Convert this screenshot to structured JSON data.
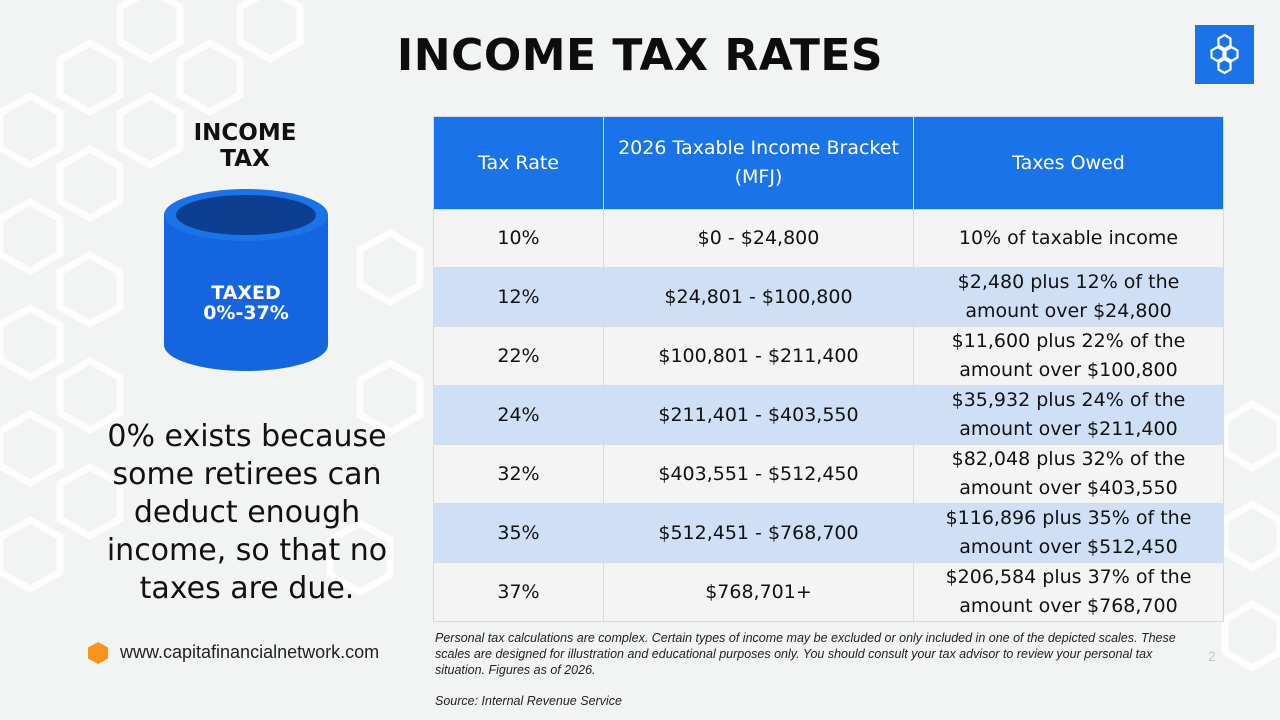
{
  "title": "INCOME TAX RATES",
  "bucket": {
    "label_line1": "INCOME",
    "label_line2": "TAX",
    "text_line1": "TAXED",
    "text_line2": "0%-37%"
  },
  "note": "0% exists because some retirees can deduct enough income, so that no taxes are due.",
  "website": "www.capitafinancialnetwork.com",
  "table": {
    "headers": [
      "Tax Rate",
      "2026 Taxable Income Bracket (MFJ)",
      "Taxes Owed"
    ],
    "rows": [
      {
        "rate": "10%",
        "bracket": "$0 - $24,800",
        "owed": "10% of taxable income"
      },
      {
        "rate": "12%",
        "bracket": "$24,801 - $100,800",
        "owed": "$2,480 plus 12% of the amount over $24,800"
      },
      {
        "rate": "22%",
        "bracket": "$100,801 - $211,400",
        "owed": "$11,600 plus 22% of the amount over $100,800"
      },
      {
        "rate": "24%",
        "bracket": "$211,401 - $403,550",
        "owed": "$35,932 plus 24% of the amount over $211,400"
      },
      {
        "rate": "32%",
        "bracket": "$403,551 - $512,450",
        "owed": "$82,048 plus 32% of the amount over $403,550"
      },
      {
        "rate": "35%",
        "bracket": "$512,451 - $768,700",
        "owed": "$116,896 plus 35% of the amount over $512,450"
      },
      {
        "rate": "37%",
        "bracket": "$768,701+",
        "owed": "$206,584 plus 37% of the amount over $768,700"
      }
    ]
  },
  "disclaimer": "Personal tax calculations are complex. Certain types of income may be excluded or only included in one of the depicted scales. These scales are designed for illustration and educational purposes only. You should consult your tax advisor to review your personal tax situation. Figures as of 2026.",
  "source": "Source: Internal Revenue Service",
  "page_number": "2",
  "icons": {
    "logo": "hexagon-cluster-icon",
    "bucket": "cylinder-bucket-icon",
    "website_bullet": "orange-hexagon-icon"
  },
  "colors": {
    "accent_blue": "#1a73e8",
    "row_highlight": "#cfe0f6",
    "bucket_blue": "#1565e0",
    "bullet_orange": "#f7941d"
  }
}
